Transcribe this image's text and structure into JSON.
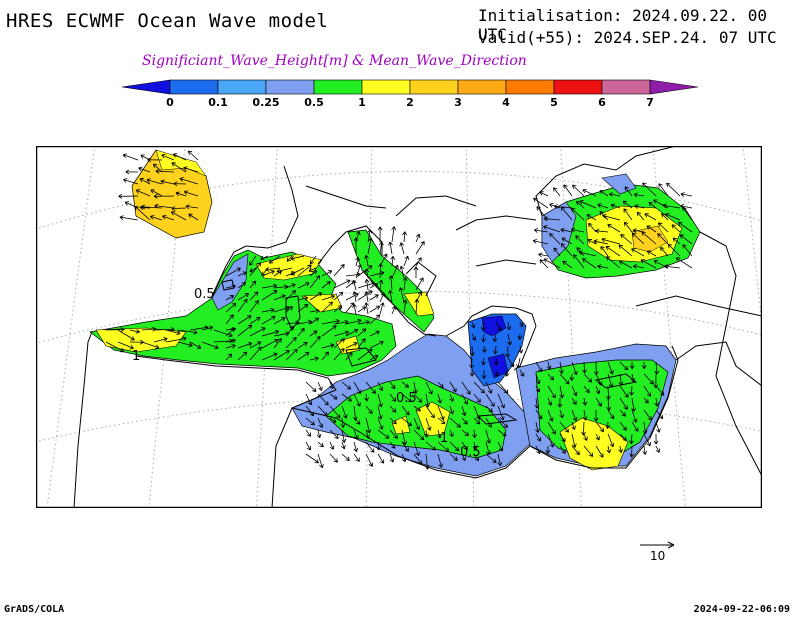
{
  "header": {
    "title": "HRES ECWMF Ocean Wave model",
    "initialisation": "Initialisation: 2024.09.22. 00 UTC",
    "valid": "Valid(+55): 2024.SEP.24. 07 UTC",
    "subtitle": "Significiant_Wave_Height[m] & Mean_Wave_Direction"
  },
  "colorbar": {
    "levels": [
      "0",
      "0.1",
      "0.25",
      "0.5",
      "1",
      "2",
      "3",
      "4",
      "5",
      "6",
      "7"
    ],
    "colors": [
      "#1010e0",
      "#1c6cf0",
      "#4aa6f6",
      "#7f9ff0",
      "#22ee22",
      "#ffff22",
      "#ffd21e",
      "#ffaa14",
      "#ff7a00",
      "#ee1111",
      "#cc6699",
      "#8e1ea8"
    ]
  },
  "map": {
    "contour_labels": [
      "0.5",
      "1",
      "0.5",
      "1",
      "0.5"
    ],
    "colors": {
      "land_outline": "#000000",
      "graticule": "#aaaaaa"
    }
  },
  "reference_vector": {
    "label": "10"
  },
  "footer": {
    "left": "GrADS/COLA",
    "right": "2024-09-22-06:09"
  }
}
